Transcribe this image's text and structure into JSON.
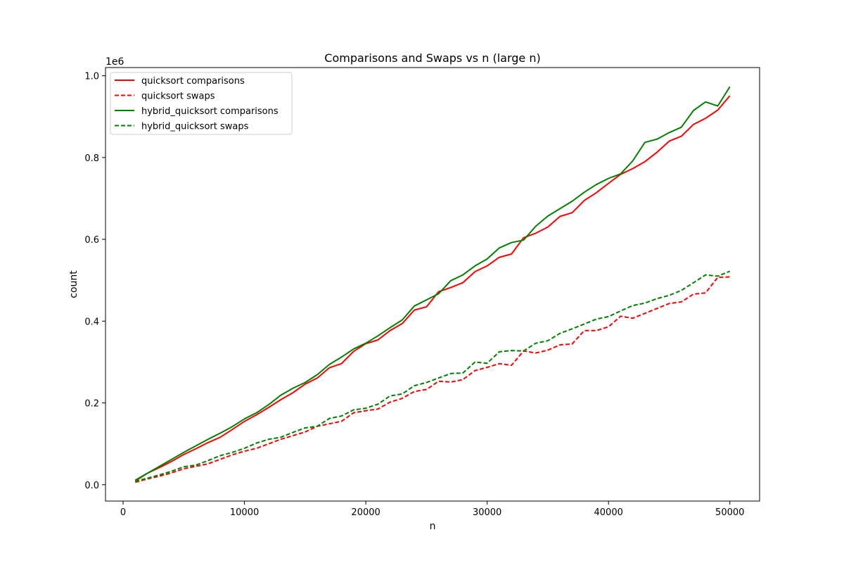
{
  "chart_data": {
    "type": "line",
    "title": "Comparisons and Swaps vs n (large n)",
    "xlabel": "n",
    "ylabel": "count",
    "y_offset_label": "1e6",
    "xlim": [
      -1450,
      52450
    ],
    "ylim": [
      -40000,
      1020000
    ],
    "x_ticks": [
      0,
      10000,
      20000,
      30000,
      40000,
      50000
    ],
    "x_tick_labels": [
      "0",
      "10000",
      "20000",
      "30000",
      "40000",
      "50000"
    ],
    "y_ticks": [
      0,
      200000,
      400000,
      600000,
      800000,
      1000000
    ],
    "y_tick_labels": [
      "0.0",
      "0.2",
      "0.4",
      "0.6",
      "0.8",
      "1.0"
    ],
    "grid": false,
    "legend_position": "upper-left",
    "x": [
      1000,
      2000,
      3000,
      4000,
      5000,
      6000,
      7000,
      8000,
      9000,
      10000,
      11000,
      12000,
      13000,
      14000,
      15000,
      16000,
      17000,
      18000,
      19000,
      20000,
      21000,
      22000,
      23000,
      24000,
      25000,
      26000,
      27000,
      28000,
      29000,
      30000,
      31000,
      32000,
      33000,
      34000,
      35000,
      36000,
      37000,
      38000,
      39000,
      40000,
      41000,
      42000,
      43000,
      44000,
      45000,
      46000,
      47000,
      48000,
      49000,
      50000
    ],
    "series": [
      {
        "name": "quicksort comparisons",
        "color": "#ff0000",
        "dash": "solid",
        "values": [
          9000,
          28000,
          42000,
          57000,
          74000,
          88000,
          103000,
          116000,
          135000,
          155000,
          171000,
          189000,
          208000,
          225000,
          246000,
          261000,
          286000,
          296000,
          326000,
          345000,
          354000,
          377000,
          394000,
          427000,
          435000,
          472000,
          482000,
          494000,
          521000,
          535000,
          556000,
          564000,
          604000,
          615000,
          630000,
          656000,
          665000,
          695000,
          714000,
          737000,
          759000,
          773000,
          790000,
          813000,
          840000,
          852000,
          881000,
          896000,
          916000,
          951000
        ]
      },
      {
        "name": "quicksort swaps",
        "color": "#ff0000",
        "dash": "dashed",
        "values": [
          6000,
          14000,
          21000,
          29000,
          39000,
          45000,
          51000,
          62000,
          73000,
          82000,
          89000,
          100000,
          111000,
          120000,
          129000,
          143000,
          149000,
          155000,
          176000,
          181000,
          185000,
          202000,
          211000,
          228000,
          233000,
          253000,
          251000,
          257000,
          279000,
          287000,
          296000,
          292000,
          327000,
          322000,
          329000,
          342000,
          344000,
          377000,
          377000,
          386000,
          412000,
          407000,
          419000,
          431000,
          443000,
          447000,
          466000,
          469000,
          507000,
          508000
        ]
      },
      {
        "name": "hybrid_quicksort comparisons",
        "color": "#008000",
        "dash": "solid",
        "values": [
          11000,
          28000,
          45000,
          62000,
          79000,
          95000,
          111000,
          126000,
          142000,
          161000,
          176000,
          196000,
          219000,
          236000,
          250000,
          269000,
          294000,
          312000,
          332000,
          346000,
          364000,
          384000,
          403000,
          437000,
          452000,
          467000,
          499000,
          513000,
          535000,
          552000,
          579000,
          592000,
          598000,
          632000,
          657000,
          675000,
          693000,
          715000,
          734000,
          749000,
          760000,
          792000,
          837000,
          845000,
          861000,
          874000,
          915000,
          936000,
          926000,
          973000
        ]
      },
      {
        "name": "hybrid_quicksort swaps",
        "color": "#008000",
        "dash": "dashed",
        "values": [
          8000,
          16000,
          24000,
          33000,
          44000,
          48000,
          59000,
          71000,
          79000,
          89000,
          102000,
          111000,
          116000,
          128000,
          139000,
          143000,
          162000,
          168000,
          183000,
          187000,
          197000,
          217000,
          222000,
          242000,
          250000,
          261000,
          272000,
          273000,
          300000,
          297000,
          325000,
          328000,
          327000,
          346000,
          352000,
          370000,
          381000,
          393000,
          405000,
          411000,
          425000,
          438000,
          444000,
          455000,
          463000,
          475000,
          494000,
          513000,
          510000,
          522000
        ]
      }
    ]
  }
}
